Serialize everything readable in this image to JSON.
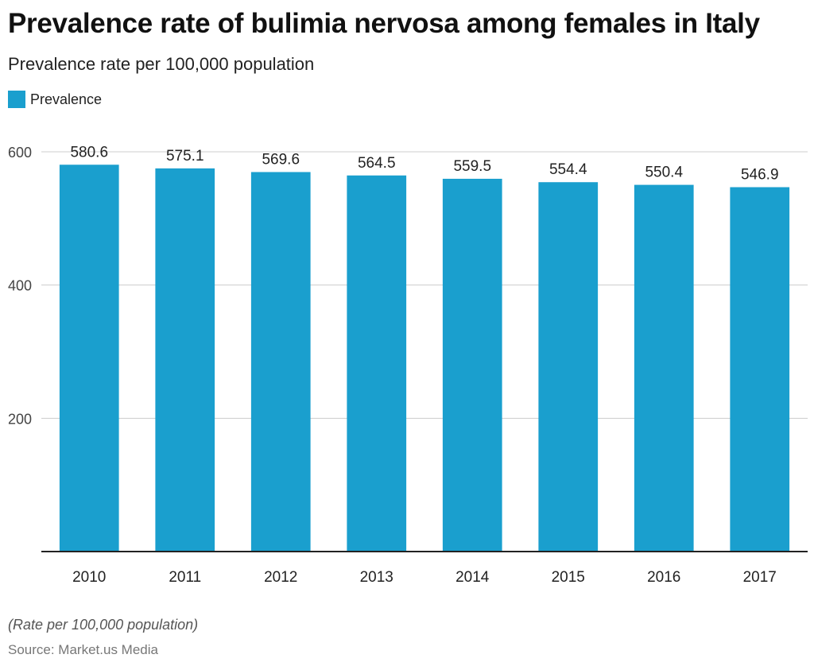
{
  "header": {
    "title": "Prevalence rate of bulimia nervosa among females in Italy",
    "subtitle": "Prevalence rate per 100,000 population"
  },
  "legend": {
    "label": "Prevalence",
    "color": "#1a9fce"
  },
  "footer": {
    "note": "(Rate per 100,000 population)",
    "source": "Source: Market.us Media"
  },
  "chart_data": {
    "type": "bar",
    "title": "Prevalence rate of bulimia nervosa among females in Italy",
    "subtitle": "Prevalence rate per 100,000 population",
    "categories": [
      "2010",
      "2011",
      "2012",
      "2013",
      "2014",
      "2015",
      "2016",
      "2017"
    ],
    "series": [
      {
        "name": "Prevalence",
        "values": [
          580.6,
          575.1,
          569.6,
          564.5,
          559.5,
          554.4,
          550.4,
          546.9
        ],
        "color": "#1a9fce"
      }
    ],
    "data_labels": [
      "580.6",
      "575.1",
      "569.6",
      "564.5",
      "559.5",
      "554.4",
      "550.4",
      "546.9"
    ],
    "ylim": [
      0,
      600
    ],
    "yticks": [
      200,
      400,
      600
    ],
    "ytick_labels": [
      "200",
      "400",
      "600"
    ],
    "grid": true,
    "legend_position": "top-left"
  }
}
